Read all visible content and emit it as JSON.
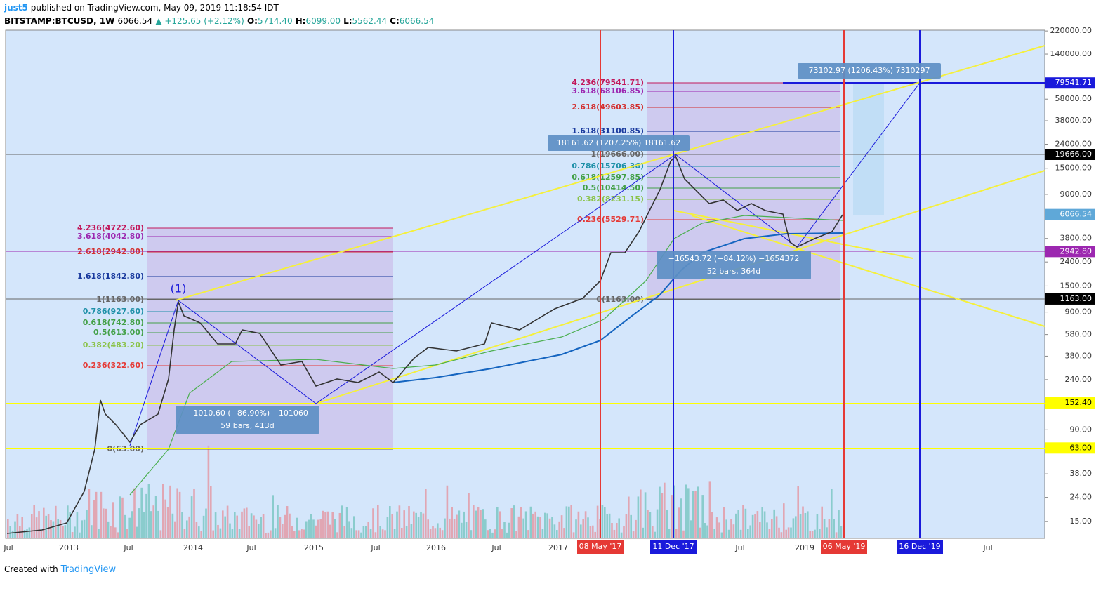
{
  "header": {
    "author": "just5",
    "published": "published on TradingView.com, May 09, 2019 11:18:54 IDT",
    "symbol": "BITSTAMP:BTCUSD, 1W",
    "price": "6066.54",
    "change": "▲ +125.65 (+2.12%)",
    "ohlc": [
      {
        "k": "O:",
        "v": "5714.40"
      },
      {
        "k": "H:",
        "v": "6099.00"
      },
      {
        "k": "L:",
        "v": "5562.44"
      },
      {
        "k": "C:",
        "v": "6066.54"
      }
    ]
  },
  "price_axis": [
    {
      "value": 220000,
      "label": "220000.00"
    },
    {
      "value": 140000,
      "label": "140000.00"
    },
    {
      "value": 58000,
      "label": "58000.00"
    },
    {
      "value": 38000,
      "label": "38000.00"
    },
    {
      "value": 24000,
      "label": "24000.00"
    },
    {
      "value": 15000,
      "label": "15000.00"
    },
    {
      "value": 9000,
      "label": "9000.00"
    },
    {
      "value": 3800,
      "label": "3800.00"
    },
    {
      "value": 2400,
      "label": "2400.00"
    },
    {
      "value": 1500,
      "label": "1500.00"
    },
    {
      "value": 900,
      "label": "900.00"
    },
    {
      "value": 580,
      "label": "580.00"
    },
    {
      "value": 380,
      "label": "380.00"
    },
    {
      "value": 240,
      "label": "240.00"
    },
    {
      "value": 90,
      "label": "90.00"
    },
    {
      "value": 38,
      "label": "38.00"
    },
    {
      "value": 24,
      "label": "24.00"
    },
    {
      "value": 15,
      "label": "15.00"
    }
  ],
  "price_markers": [
    {
      "value": 79541.71,
      "label": "79541.71",
      "color": "#1a1adb"
    },
    {
      "value": 19666,
      "label": "19666.00",
      "color": "#000000"
    },
    {
      "value": 6066.54,
      "label": "6066.54",
      "color": "#5fa8d8"
    },
    {
      "value": 2942.8,
      "label": "2942.80",
      "color": "#9c27b0"
    },
    {
      "value": 1163,
      "label": "1163.00",
      "color": "#000000"
    },
    {
      "value": 152.4,
      "label": "152.40",
      "color": "#ffff00"
    },
    {
      "value": 63,
      "label": "63.00",
      "color": "#ffff00"
    }
  ],
  "time_axis": [
    "Jul",
    "2013",
    "Jul",
    "2014",
    "Jul",
    "2015",
    "Jul",
    "2016",
    "Jul",
    "2017",
    "Jul",
    "2019",
    "Jul"
  ],
  "date_markers": [
    {
      "label": "08 May '17",
      "color": "#e53935"
    },
    {
      "label": "11 Dec '17",
      "color": "#1a1adb"
    },
    {
      "label": "06 May '19",
      "color": "#e53935"
    },
    {
      "label": "16 Dec '19",
      "color": "#1a1adb"
    }
  ],
  "fib_left": [
    "4.236(4722.60)",
    "3.618(4042.80)",
    "2.618(2942.80)",
    "1.618(1842.80)",
    "1(1163.00)",
    "0.786(927.60)",
    "0.618(742.80)",
    "0.5(613.00)",
    "0.382(483.20)",
    "0.236(322.60)",
    "0(63.00)"
  ],
  "fib_right": [
    "4.236(79541.71)",
    "3.618(68106.85)",
    "2.618(49603.85)",
    "1.618(31100.85)",
    "1(19666.00)",
    "0.786(15706.36)",
    "0.618(12597.85)",
    "0.5(10414.50)",
    "0.382(8231.15)",
    "0.236(5529.71)",
    "0(1163.00)"
  ],
  "callouts": [
    {
      "lines": [
        "18161.62 (1207.25%) 18161.62"
      ]
    },
    {
      "lines": [
        "73102.97 (1206.43%) 7310297"
      ]
    },
    {
      "lines": [
        "−16543.72 (−84.12%) −1654372",
        "52 bars, 364d"
      ]
    },
    {
      "lines": [
        "−1010.60 (−86.90%) −101060",
        "59 bars, 413d"
      ]
    }
  ],
  "waves": [
    "(1)"
  ],
  "footer": {
    "prefix": "Created with",
    "brand": "TradingView"
  }
}
